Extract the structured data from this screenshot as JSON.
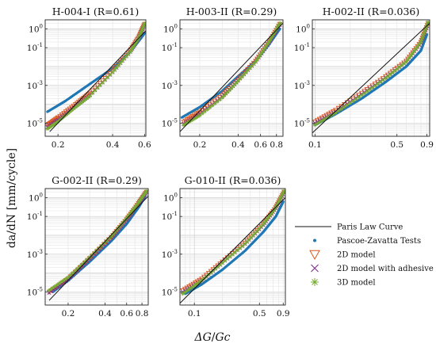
{
  "figure": {
    "ylabel": "da/dN [mm/cycle]",
    "xlabel_main": "ΔG",
    "xlabel_sep": "/",
    "xlabel_den": "Gc"
  },
  "legend": {
    "placement": "bottom-right",
    "items": [
      {
        "label": "Paris Law Curve",
        "marker": "line",
        "color": "#111111"
      },
      {
        "label": "Pascoe-Zavatta Tests",
        "marker": "dot",
        "color": "#1f77b4"
      },
      {
        "label": "2D model",
        "marker": "triangle-down",
        "color": "#d9541e"
      },
      {
        "label": "2D model with adhesive",
        "marker": "x",
        "color": "#7e2f8e"
      },
      {
        "label": "3D model",
        "marker": "asterisk",
        "color": "#77ac30"
      }
    ]
  },
  "colors": {
    "paris": "#111111",
    "tests": "#1f77b4",
    "model2d": "#d9541e",
    "model2d_adh": "#7e2f8e",
    "model3d": "#77ac30"
  },
  "chart_data": [
    {
      "type": "scatter",
      "title": "H-004-I (R=0.61)",
      "xscale": "log",
      "yscale": "log",
      "xlim": [
        0.17,
        0.61
      ],
      "ylim": [
        2e-06,
        3
      ],
      "xticks": [
        "0.2",
        "0.4",
        "0.6"
      ],
      "xtick_values": [
        0.2,
        0.4,
        0.6
      ],
      "yticks": [
        {
          "base": "10",
          "exp": "-5"
        },
        {
          "base": "10",
          "exp": "-3"
        },
        {
          "base": "10",
          "exp": "-1"
        },
        {
          "base": "10",
          "exp": "0"
        }
      ],
      "ytick_values": [
        1e-05,
        0.001,
        0.1,
        1
      ],
      "grid": true,
      "series": [
        {
          "key": "paris",
          "x": [
            0.18,
            0.61
          ],
          "y": [
            3.5e-06,
            0.8
          ]
        },
        {
          "key": "tests",
          "x": [
            0.175,
            0.22,
            0.3,
            0.4,
            0.5,
            0.57,
            0.6
          ],
          "y": [
            4e-05,
            0.00015,
            0.0012,
            0.008,
            0.06,
            0.3,
            0.6
          ]
        },
        {
          "key": "model2d",
          "x": [
            0.175,
            0.2,
            0.25,
            0.3,
            0.4,
            0.5,
            0.56,
            0.6
          ],
          "y": [
            8e-06,
            2e-05,
            0.0001,
            0.0004,
            0.006,
            0.07,
            0.4,
            1.8
          ]
        },
        {
          "key": "model2d_adh",
          "x": [
            0.175,
            0.2,
            0.25,
            0.3,
            0.4,
            0.5,
            0.56,
            0.6
          ],
          "y": [
            6e-06,
            1.5e-05,
            8e-05,
            0.0003,
            0.005,
            0.06,
            0.35,
            1.6
          ]
        },
        {
          "key": "model3d",
          "x": [
            0.175,
            0.2,
            0.25,
            0.3,
            0.4,
            0.5,
            0.56,
            0.6
          ],
          "y": [
            5e-06,
            1.2e-05,
            7e-05,
            0.00028,
            0.005,
            0.06,
            0.35,
            1.9
          ]
        }
      ]
    },
    {
      "type": "scatter",
      "title": "H-003-II (R=0.29)",
      "xscale": "log",
      "yscale": "log",
      "xlim": [
        0.14,
        0.9
      ],
      "ylim": [
        2e-06,
        3
      ],
      "xticks": [
        "0.2",
        "0.4",
        "0.6",
        "0.8"
      ],
      "xtick_values": [
        0.2,
        0.4,
        0.6,
        0.8
      ],
      "yticks": [
        {
          "base": "10",
          "exp": "-5"
        },
        {
          "base": "10",
          "exp": "-3"
        },
        {
          "base": "10",
          "exp": "-1"
        },
        {
          "base": "10",
          "exp": "0"
        }
      ],
      "ytick_values": [
        1e-05,
        0.001,
        0.1,
        1
      ],
      "grid": true,
      "series": [
        {
          "key": "paris",
          "x": [
            0.14,
            0.9
          ],
          "y": [
            3.5e-06,
            2.0
          ]
        },
        {
          "key": "tests",
          "x": [
            0.145,
            0.2,
            0.3,
            0.4,
            0.55,
            0.7,
            0.85
          ],
          "y": [
            2e-05,
            7e-05,
            0.0005,
            0.003,
            0.02,
            0.15,
            1.0
          ]
        },
        {
          "key": "model2d",
          "x": [
            0.15,
            0.2,
            0.3,
            0.4,
            0.55,
            0.7,
            0.85
          ],
          "y": [
            1.2e-05,
            4e-05,
            0.0003,
            0.002,
            0.02,
            0.2,
            1.8
          ]
        },
        {
          "key": "model2d_adh",
          "x": [
            0.15,
            0.2,
            0.3,
            0.4,
            0.55,
            0.7,
            0.85
          ],
          "y": [
            9e-06,
            3e-05,
            0.00025,
            0.0018,
            0.018,
            0.18,
            1.6
          ]
        },
        {
          "key": "model3d",
          "x": [
            0.15,
            0.2,
            0.3,
            0.4,
            0.55,
            0.7,
            0.85
          ],
          "y": [
            8e-06,
            2.5e-05,
            0.00022,
            0.0017,
            0.018,
            0.2,
            2.0
          ]
        }
      ]
    },
    {
      "type": "scatter",
      "title": "H-002-II (R=0.036)",
      "xscale": "log",
      "yscale": "log",
      "xlim": [
        0.095,
        0.95
      ],
      "ylim": [
        2e-06,
        3
      ],
      "xticks": [
        "0.1",
        "0.5",
        "0.9"
      ],
      "xtick_values": [
        0.1,
        0.5,
        0.9
      ],
      "yticks": [
        {
          "base": "10",
          "exp": "-5"
        },
        {
          "base": "10",
          "exp": "-3"
        },
        {
          "base": "10",
          "exp": "-1"
        },
        {
          "base": "10",
          "exp": "0"
        }
      ],
      "ytick_values": [
        1e-05,
        0.001,
        0.1,
        1
      ],
      "grid": true,
      "series": [
        {
          "key": "paris",
          "x": [
            0.095,
            0.95
          ],
          "y": [
            3e-06,
            2.0
          ]
        },
        {
          "key": "tests",
          "x": [
            0.1,
            0.15,
            0.25,
            0.4,
            0.6,
            0.8,
            0.9
          ],
          "y": [
            8e-06,
            3e-05,
            0.0002,
            0.0015,
            0.01,
            0.07,
            0.5
          ]
        },
        {
          "key": "model2d",
          "x": [
            0.1,
            0.15,
            0.25,
            0.4,
            0.6,
            0.8,
            0.92
          ],
          "y": [
            1.2e-05,
            5e-05,
            0.0004,
            0.003,
            0.02,
            0.2,
            2.0
          ]
        },
        {
          "key": "model2d_adh",
          "x": [
            0.1,
            0.15,
            0.25,
            0.4,
            0.6,
            0.8,
            0.92
          ],
          "y": [
            1e-05,
            4e-05,
            0.00035,
            0.0026,
            0.018,
            0.18,
            1.8
          ]
        },
        {
          "key": "model3d",
          "x": [
            0.1,
            0.15,
            0.25,
            0.4,
            0.6,
            0.8,
            0.92
          ],
          "y": [
            8e-06,
            3.5e-05,
            0.0003,
            0.0024,
            0.018,
            0.2,
            2.2
          ]
        }
      ]
    },
    {
      "type": "scatter",
      "title": "G-002-II (R=0.29)",
      "xscale": "log",
      "yscale": "log",
      "xlim": [
        0.13,
        0.9
      ],
      "ylim": [
        2e-06,
        3
      ],
      "xticks": [
        "0.2",
        "0.4",
        "0.6",
        "0.8"
      ],
      "xtick_values": [
        0.2,
        0.4,
        0.6,
        0.8
      ],
      "yticks": [
        {
          "base": "10",
          "exp": "-5"
        },
        {
          "base": "10",
          "exp": "-3"
        },
        {
          "base": "10",
          "exp": "-1"
        },
        {
          "base": "10",
          "exp": "0"
        }
      ],
      "ytick_values": [
        1e-05,
        0.001,
        0.1,
        1
      ],
      "grid": true,
      "series": [
        {
          "key": "paris",
          "x": [
            0.14,
            0.9
          ],
          "y": [
            3.5e-06,
            1.2
          ]
        },
        {
          "key": "tests",
          "x": [
            0.15,
            0.2,
            0.3,
            0.45,
            0.6,
            0.75,
            0.85
          ],
          "y": [
            1e-05,
            4e-05,
            0.0004,
            0.005,
            0.04,
            0.3,
            1.2
          ]
        },
        {
          "key": "model2d",
          "x": [
            0.14,
            0.2,
            0.3,
            0.45,
            0.6,
            0.75,
            0.87
          ],
          "y": [
            1e-05,
            5e-05,
            0.0006,
            0.008,
            0.07,
            0.5,
            2.0
          ]
        },
        {
          "key": "model2d_adh",
          "x": [
            0.14,
            0.2,
            0.3,
            0.45,
            0.6,
            0.75,
            0.87
          ],
          "y": [
            9e-06,
            4.5e-05,
            0.00055,
            0.0075,
            0.065,
            0.48,
            1.9
          ]
        },
        {
          "key": "model3d",
          "x": [
            0.14,
            0.2,
            0.3,
            0.45,
            0.6,
            0.75,
            0.87
          ],
          "y": [
            1.2e-05,
            6e-05,
            0.0007,
            0.009,
            0.08,
            0.55,
            2.2
          ]
        }
      ]
    },
    {
      "type": "scatter",
      "title": "G-010-II (R=0.036)",
      "xscale": "log",
      "yscale": "log",
      "xlim": [
        0.07,
        0.95
      ],
      "ylim": [
        2e-06,
        3
      ],
      "xticks": [
        "0.1",
        "0.5",
        "0.9"
      ],
      "xtick_values": [
        0.1,
        0.5,
        0.9
      ],
      "yticks": [
        {
          "base": "10",
          "exp": "-5"
        },
        {
          "base": "10",
          "exp": "-3"
        },
        {
          "base": "10",
          "exp": "-1"
        },
        {
          "base": "10",
          "exp": "0"
        }
      ],
      "ytick_values": [
        1e-05,
        0.001,
        0.1,
        1
      ],
      "grid": true,
      "series": [
        {
          "key": "paris",
          "x": [
            0.07,
            0.95
          ],
          "y": [
            2.5e-06,
            1.0
          ]
        },
        {
          "key": "tests",
          "x": [
            0.08,
            0.12,
            0.2,
            0.35,
            0.55,
            0.75,
            0.9
          ],
          "y": [
            8e-06,
            2.5e-05,
            0.00015,
            0.0015,
            0.015,
            0.1,
            0.6
          ]
        },
        {
          "key": "model2d",
          "x": [
            0.075,
            0.12,
            0.2,
            0.35,
            0.55,
            0.75,
            0.92
          ],
          "y": [
            1.2e-05,
            5e-05,
            0.0004,
            0.004,
            0.04,
            0.3,
            2.0
          ]
        },
        {
          "key": "model2d_adh",
          "x": [
            0.075,
            0.12,
            0.2,
            0.35,
            0.55,
            0.75,
            0.92
          ],
          "y": [
            1e-05,
            4e-05,
            0.00035,
            0.0035,
            0.035,
            0.27,
            1.8
          ]
        },
        {
          "key": "model3d",
          "x": [
            0.075,
            0.12,
            0.2,
            0.35,
            0.55,
            0.75,
            0.92
          ],
          "y": [
            8e-06,
            4e-05,
            0.00035,
            0.0035,
            0.038,
            0.3,
            2.2
          ]
        }
      ]
    }
  ]
}
